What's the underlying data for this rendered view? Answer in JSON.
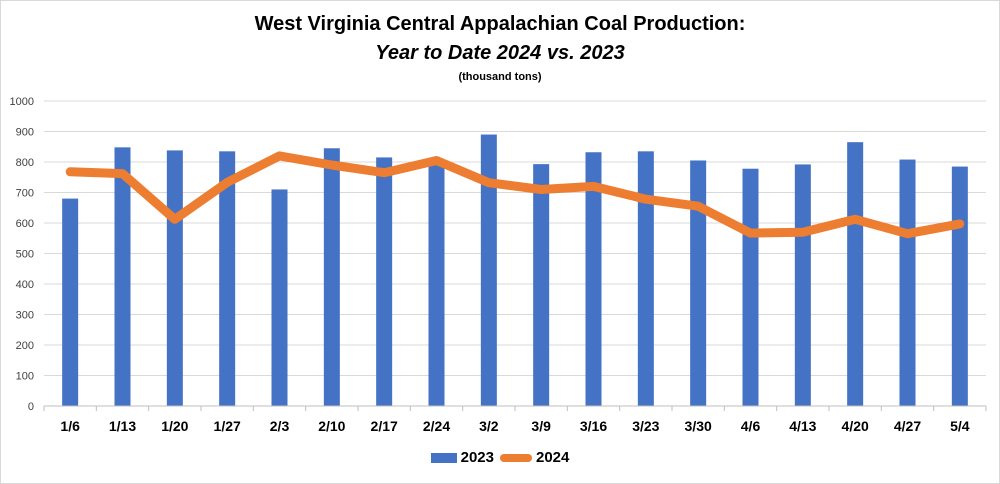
{
  "chart_data": {
    "type": "bar",
    "title": "West Virginia Central Appalachian Coal Production:",
    "subtitle": "Year to Date 2024 vs. 2023",
    "units": "(thousand tons)",
    "categories": [
      "1/6",
      "1/13",
      "1/20",
      "1/27",
      "2/3",
      "2/10",
      "2/17",
      "2/24",
      "3/2",
      "3/9",
      "3/16",
      "3/23",
      "3/30",
      "4/6",
      "4/13",
      "4/20",
      "4/27",
      "5/4"
    ],
    "series": [
      {
        "name": "2023",
        "type": "bar",
        "color": "#4472c4",
        "values": [
          680,
          848,
          838,
          835,
          710,
          845,
          815,
          790,
          890,
          793,
          832,
          835,
          805,
          778,
          792,
          865,
          808,
          785
        ]
      },
      {
        "name": "2024",
        "type": "line",
        "color": "#ed7d31",
        "values": [
          768,
          762,
          612,
          733,
          820,
          790,
          765,
          805,
          732,
          710,
          720,
          678,
          655,
          567,
          570,
          612,
          565,
          597
        ]
      }
    ],
    "ylim": [
      0,
      1000
    ],
    "yticks": [
      0,
      100,
      200,
      300,
      400,
      500,
      600,
      700,
      800,
      900,
      1000
    ],
    "grid": true,
    "legend_position": "bottom"
  }
}
